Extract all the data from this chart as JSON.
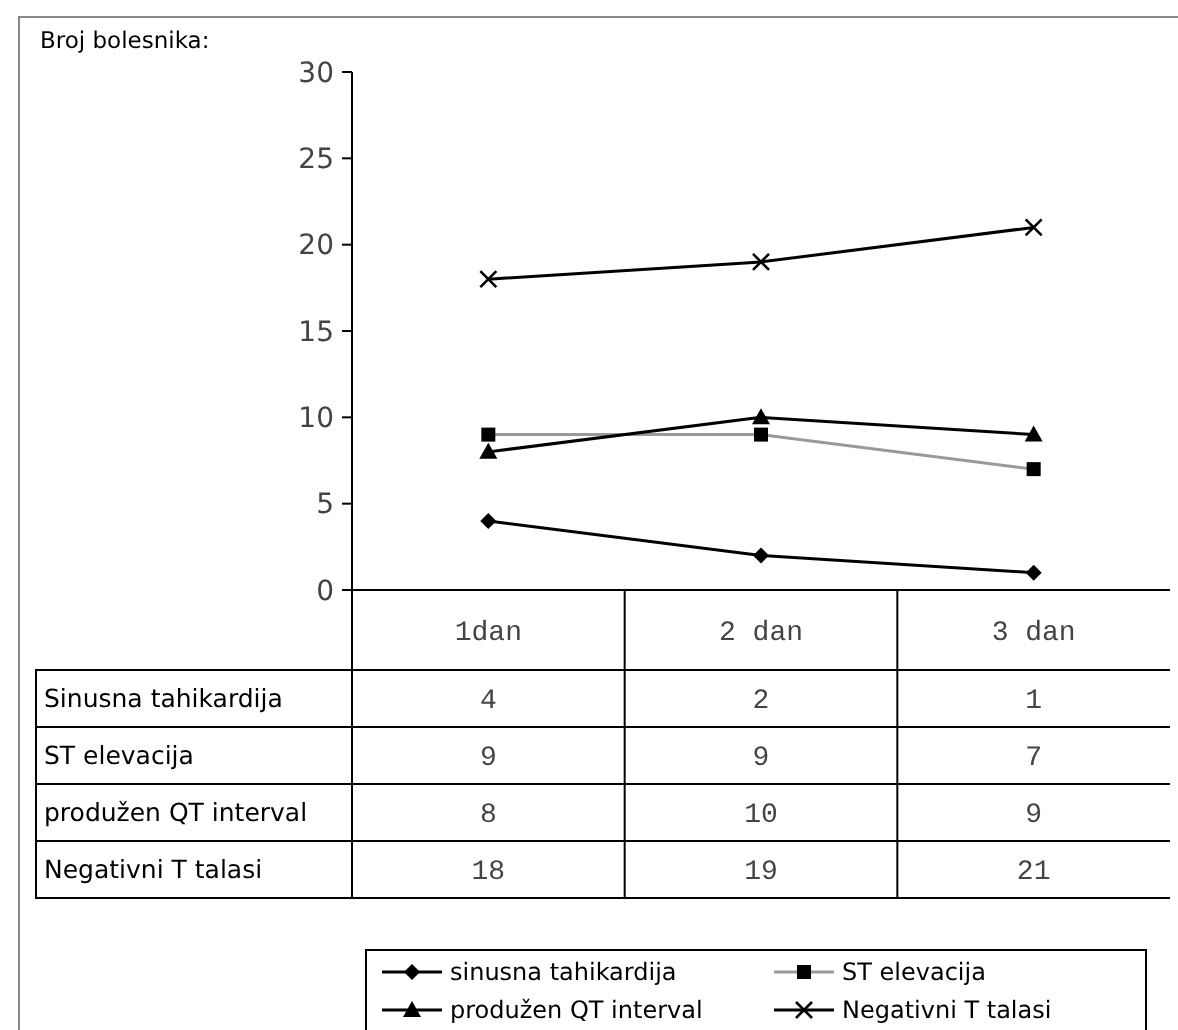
{
  "chart_data": {
    "type": "line",
    "ylabel": "Broj bolesnika:",
    "categories": [
      "1dan",
      "2 dan",
      "3 dan"
    ],
    "series": [
      {
        "name": "sinusna tahikardija",
        "color": "#000000",
        "marker": "diamond",
        "values": [
          4,
          2,
          1
        ]
      },
      {
        "name": "ST elevacija",
        "color": "#999999",
        "marker": "square",
        "values": [
          9,
          9,
          7
        ]
      },
      {
        "name": "produžen QT interval",
        "color": "#000000",
        "marker": "triangle",
        "values": [
          8,
          10,
          9
        ]
      },
      {
        "name": "Negativni T talasi",
        "color": "#000000",
        "marker": "cross",
        "values": [
          18,
          19,
          21
        ]
      }
    ],
    "annotations": [
      "Sinusna tahikardija",
      "ST elevacija",
      "produžen QT interval",
      "Negativni T talasi"
    ],
    "ylim": [
      0,
      30
    ],
    "yticks": [
      0,
      5,
      10,
      15,
      20,
      25,
      30
    ],
    "grid": false,
    "legend": "bottom",
    "data_labels": true
  }
}
